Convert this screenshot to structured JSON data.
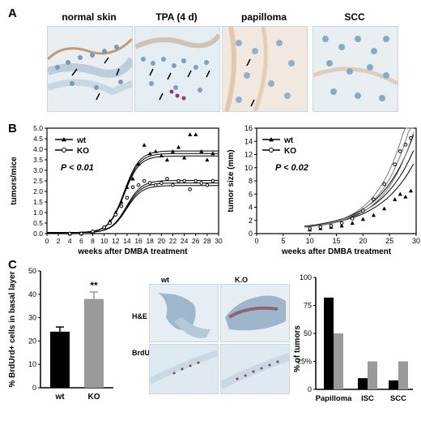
{
  "panels": {
    "a": {
      "letter": "A",
      "titles": [
        "normal skin",
        "TPA (4 d)",
        "papilloma",
        "SCC"
      ]
    },
    "b": {
      "letter": "B"
    },
    "c": {
      "letter": "C",
      "micro_headers": {
        "wt": "wt",
        "ko": "K.O"
      },
      "micro_rows": {
        "he": "H&E",
        "brdu": "BrdU"
      }
    }
  },
  "colors": {
    "wt": "#000000",
    "ko": "#9a9a9a",
    "stain_blue": "#b8d4e3",
    "stain_brown": "#b07a4a"
  },
  "chart_data": [
    {
      "type": "scatter",
      "ylabel": "tumors/mice",
      "xlabel": "weeks after DMBA treatment",
      "annotation": "P < 0.01",
      "legend": [
        "wt",
        "KO"
      ],
      "legend_position": "top-left",
      "xlim": [
        0,
        30
      ],
      "ylim": [
        0,
        5.0
      ],
      "xticks": [
        0,
        2,
        4,
        6,
        8,
        10,
        12,
        14,
        16,
        18,
        20,
        22,
        24,
        26,
        28,
        30
      ],
      "yticks": [
        0.0,
        0.5,
        1.0,
        1.5,
        2.0,
        2.5,
        3.0,
        3.5,
        4.0,
        4.5,
        5.0
      ],
      "tick_labels_y": [
        "0.0",
        "0.5",
        "1.0",
        "1.5",
        "2.0",
        "2.5",
        "3.0",
        "3.5",
        "4.0",
        "4.5",
        "5.0"
      ],
      "series": [
        {
          "name": "wt",
          "marker": "triangle",
          "plateau": 3.8,
          "x": [
            4,
            6,
            8,
            10,
            11,
            12,
            13,
            14,
            15,
            16,
            17,
            18,
            19,
            20,
            21,
            22,
            23,
            24,
            25,
            26,
            27,
            28,
            29
          ],
          "y": [
            0.0,
            0.0,
            0.1,
            0.3,
            0.6,
            1.0,
            1.5,
            2.2,
            2.6,
            3.3,
            4.2,
            3.8,
            3.9,
            3.7,
            3.5,
            3.9,
            4.1,
            3.6,
            4.7,
            4.7,
            3.9,
            3.5,
            3.8
          ]
        },
        {
          "name": "KO",
          "marker": "circle",
          "plateau": 2.4,
          "x": [
            4,
            6,
            8,
            10,
            11,
            12,
            13,
            14,
            15,
            16,
            17,
            18,
            19,
            20,
            21,
            22,
            23,
            24,
            25,
            26,
            27,
            28,
            29
          ],
          "y": [
            0.0,
            0.0,
            0.1,
            0.3,
            0.5,
            0.9,
            1.3,
            1.7,
            2.2,
            2.3,
            2.5,
            2.4,
            2.3,
            2.4,
            2.6,
            2.3,
            2.5,
            2.5,
            2.1,
            2.5,
            2.4,
            2.3,
            2.5
          ]
        }
      ]
    },
    {
      "type": "scatter",
      "ylabel": "tumor size (mm)",
      "xlabel": "weeks after DMBA treatment",
      "annotation": "P < 0.02",
      "legend": [
        "wt",
        "KO"
      ],
      "legend_position": "top-left",
      "xlim": [
        0,
        30
      ],
      "ylim": [
        0,
        16
      ],
      "xticks": [
        0,
        5,
        10,
        15,
        20,
        25,
        30
      ],
      "yticks": [
        0,
        2,
        4,
        6,
        8,
        10,
        12,
        14,
        16
      ],
      "series": [
        {
          "name": "wt",
          "marker": "triangle",
          "x": [
            10,
            12,
            14,
            16,
            18,
            20,
            22,
            24,
            26,
            27,
            28,
            29
          ],
          "y": [
            0.6,
            0.8,
            1.0,
            1.2,
            1.6,
            2.2,
            2.8,
            3.8,
            5.2,
            6.0,
            5.6,
            6.5
          ]
        },
        {
          "name": "KO",
          "marker": "circle",
          "x": [
            10,
            12,
            14,
            16,
            18,
            20,
            22,
            24,
            26,
            27,
            28,
            29
          ],
          "y": [
            0.8,
            1.0,
            1.2,
            1.6,
            2.3,
            3.5,
            5.2,
            7.5,
            10.5,
            12.5,
            13.5,
            14.5
          ]
        }
      ]
    },
    {
      "type": "bar",
      "ylabel": "% BrdUrd+ cells in basal layer",
      "categories": [
        "wt",
        "KO"
      ],
      "values": [
        24,
        38
      ],
      "errors": [
        2,
        3
      ],
      "significance": "**",
      "ylim": [
        0,
        50
      ],
      "yticks": [
        0,
        10,
        20,
        30,
        40,
        50
      ]
    },
    {
      "type": "bar",
      "ylabel": "% of tumors",
      "categories": [
        "Papilloma",
        "ISC",
        "SCC"
      ],
      "series": [
        {
          "name": "wt",
          "values": [
            82,
            10,
            8
          ]
        },
        {
          "name": "KO",
          "values": [
            50,
            25,
            25
          ]
        }
      ],
      "ylim": [
        0,
        100
      ],
      "yticks": [
        0,
        25,
        50,
        75,
        100
      ],
      "tick_labels_y": [
        "0",
        "25%",
        "50",
        "75",
        "100"
      ]
    }
  ]
}
